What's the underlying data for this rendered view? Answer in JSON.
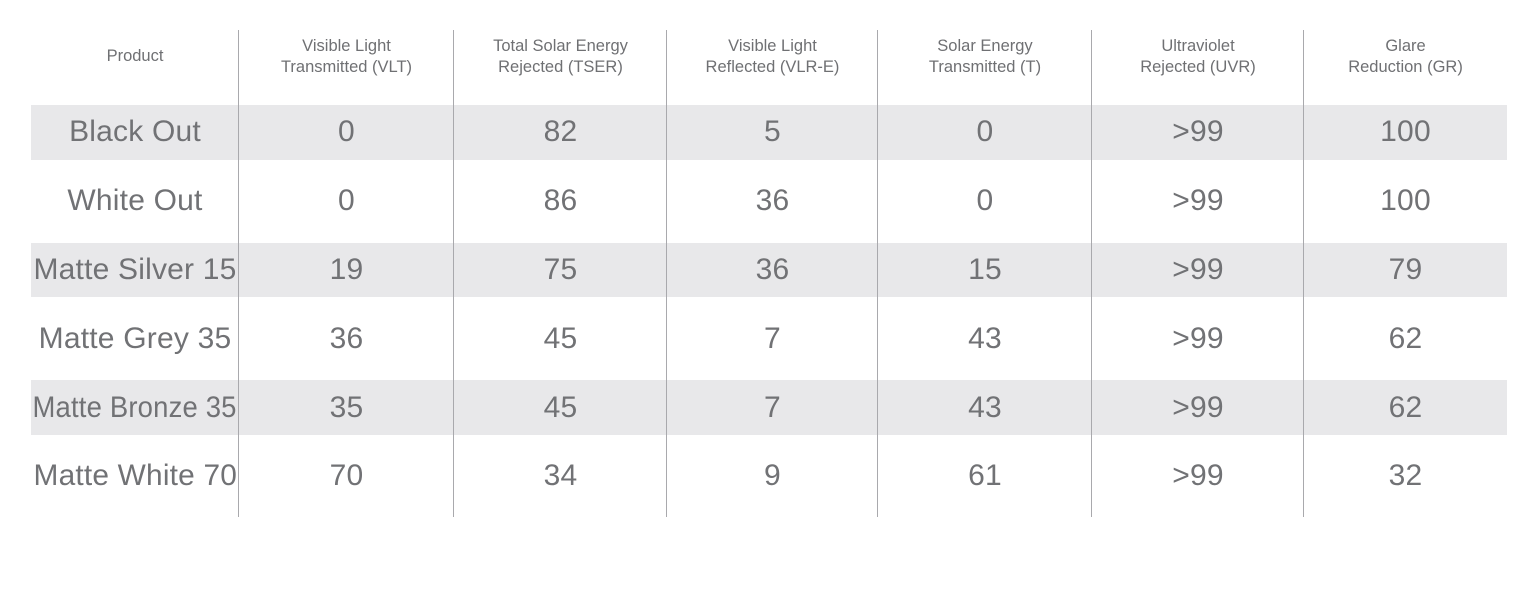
{
  "colors": {
    "background": "#ffffff",
    "stripe": "#e8e8ea",
    "divider": "#a9a9ad",
    "text": "#717275"
  },
  "chart_data": {
    "type": "table",
    "columns": [
      {
        "label": "Product",
        "lines": [
          "Product"
        ]
      },
      {
        "label": "Visible Light Transmitted (VLT)",
        "lines": [
          "Visible Light",
          "Transmitted (VLT)"
        ]
      },
      {
        "label": "Total Solar Energy Rejected (TSER)",
        "lines": [
          "Total Solar Energy",
          "Rejected (TSER)"
        ]
      },
      {
        "label": "Visible Light Reflected (VLR-E)",
        "lines": [
          "Visible Light",
          "Reflected (VLR-E)"
        ]
      },
      {
        "label": "Solar Energy Transmitted (T)",
        "lines": [
          "Solar Energy",
          "Transmitted (T)"
        ]
      },
      {
        "label": "Ultraviolet Rejected (UVR)",
        "lines": [
          "Ultraviolet",
          "Rejected (UVR)"
        ]
      },
      {
        "label": "Glare Reduction (GR)",
        "lines": [
          "Glare",
          "Reduction (GR)"
        ]
      }
    ],
    "rows": [
      [
        "Black Out",
        "0",
        "82",
        "5",
        "0",
        ">99",
        "100"
      ],
      [
        "White Out",
        "0",
        "86",
        "36",
        "0",
        ">99",
        "100"
      ],
      [
        "Matte Silver 15",
        "19",
        "75",
        "36",
        "15",
        ">99",
        "79"
      ],
      [
        "Matte Grey 35",
        "36",
        "45",
        "7",
        "43",
        ">99",
        "62"
      ],
      [
        "Matte Bronze 35",
        "35",
        "45",
        "7",
        "43",
        ">99",
        "62"
      ],
      [
        "Matte White 70",
        "70",
        "34",
        "9",
        "61",
        ">99",
        "32"
      ]
    ],
    "layout": {
      "striped_row_indices": [
        0,
        2,
        4
      ],
      "grid": "vertical-column-dividers-only",
      "legend": "none"
    }
  }
}
